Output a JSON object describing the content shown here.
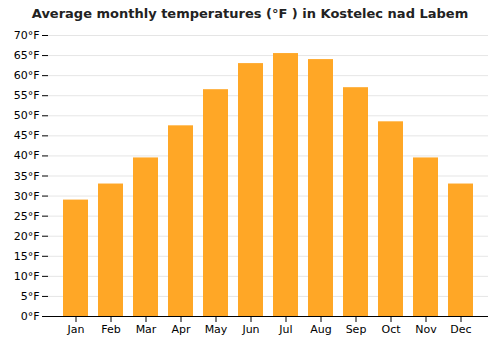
{
  "chart_data": {
    "type": "bar",
    "title": "Average monthly temperatures (°F ) in Kostelec nad Labem",
    "categories": [
      "Jan",
      "Feb",
      "Mar",
      "Apr",
      "May",
      "Jun",
      "Jul",
      "Aug",
      "Sep",
      "Oct",
      "Nov",
      "Dec"
    ],
    "values": [
      29,
      33,
      39.5,
      47.5,
      56.5,
      63,
      65.5,
      64,
      57,
      48.5,
      39.5,
      33
    ],
    "color": "#FFA726",
    "ylim": [
      0,
      70
    ],
    "yticks": [
      {
        "value": 0,
        "label": "0°F"
      },
      {
        "value": 5,
        "label": "5°F"
      },
      {
        "value": 10,
        "label": "10°F"
      },
      {
        "value": 15,
        "label": "15°F"
      },
      {
        "value": 20,
        "label": "20°F"
      },
      {
        "value": 25,
        "label": "25°F"
      },
      {
        "value": 30,
        "label": "30°F"
      },
      {
        "value": 35,
        "label": "35°F"
      },
      {
        "value": 40,
        "label": "40°F"
      },
      {
        "value": 45,
        "label": "45°F"
      },
      {
        "value": 50,
        "label": "50°F"
      },
      {
        "value": 55,
        "label": "55°F"
      },
      {
        "value": 60,
        "label": "60°F"
      },
      {
        "value": 65,
        "label": "65°F"
      },
      {
        "value": 70,
        "label": "70°F"
      }
    ],
    "grid": true
  }
}
